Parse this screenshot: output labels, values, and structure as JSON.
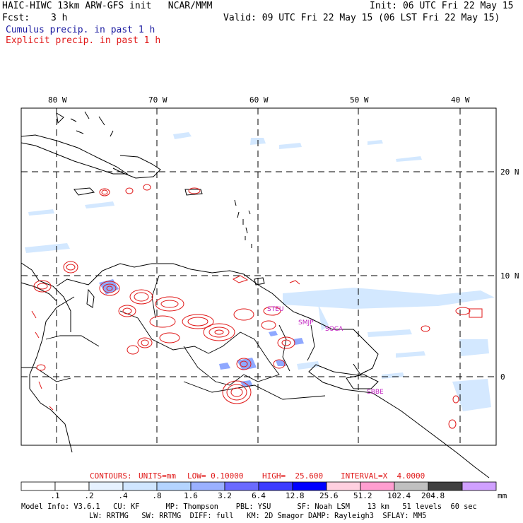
{
  "header": {
    "title": "HAIC-HIWC 13km ARW-GFS init   NCAR/MMM",
    "init": "Init: 06 UTC Fri 22 May 15",
    "fcst_label": "Fcst:",
    "fcst_value": "3 h",
    "valid": "Valid: 09 UTC Fri 22 May 15 (06 LST Fri 22 May 15)",
    "cumulus_label": "Cumulus precip. in past 1 h",
    "explicit_label": "Explicit precip. in past 1 h"
  },
  "map": {
    "lon_labels": [
      "80 W",
      "70 W",
      "60 W",
      "50 W",
      "40 W"
    ],
    "lat_labels": [
      "20 N",
      "10 N",
      "0"
    ],
    "stations": [
      "STEU",
      "SMJP",
      "SOCA",
      "SBBE"
    ],
    "colors": {
      "coast": "#000000",
      "explicit": "#e01818",
      "station": "#c020c0"
    }
  },
  "contour_info": {
    "contours": "CONTOURS:",
    "units": "UNITS=mm",
    "low": "LOW= 0.10000",
    "high": "HIGH=  25.600",
    "interval": "INTERVAL=X  4.0000"
  },
  "colorbar": {
    "unit": "mm",
    "ticks": [
      ".1",
      ".2",
      ".4",
      ".8",
      "1.6",
      "3.2",
      "6.4",
      "12.8",
      "25.6",
      "51.2",
      "102.4",
      "204.8"
    ],
    "colors": [
      "#ffffff",
      "#ffffff",
      "#e6f2ff",
      "#d0e6ff",
      "#b4d4ff",
      "#9ab0ff",
      "#6a6aff",
      "#3c3cff",
      "#0000ff",
      "#ffd0e0",
      "#ff9ed0",
      "#c0c0c0",
      "#404040",
      "#d0a0ff"
    ]
  },
  "model_info": {
    "line1": "Model Info: V3.6.1   CU: KF      MP: Thompson    PBL: YSU      SF: Noah LSM    13 km   51 levels  60 sec",
    "line2": "LW: RRTMG   SW: RRTMG  DIFF: full   KM: 2D Smagor DAMP: Rayleigh3  SFLAY: MM5"
  }
}
